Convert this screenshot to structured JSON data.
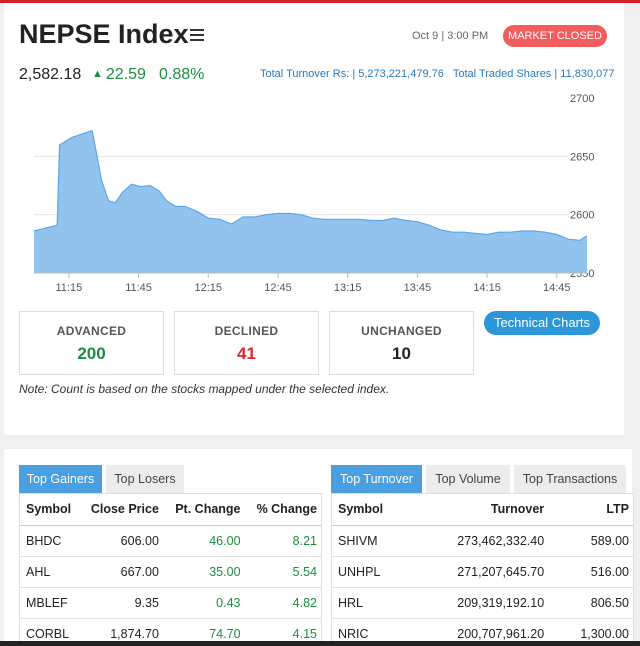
{
  "header": {
    "title": "NEPSE Index",
    "datetime": "Oct 9 | 3:00 PM",
    "status_badge": "MARKET CLOSED"
  },
  "index": {
    "value": "2,582.18",
    "change": "22.59",
    "percent": "0.88%",
    "total_turnover": "Total Turnover Rs: | 5,273,221,479.76",
    "total_traded_shares": "Total Traded Shares | 11,830,077"
  },
  "chart_data": {
    "type": "area",
    "x_ticks": [
      "11:15",
      "11:45",
      "12:15",
      "12:45",
      "13:15",
      "13:45",
      "14:15",
      "14:45"
    ],
    "y_ticks": [
      "2700",
      "2650",
      "2600",
      "2550"
    ],
    "ylim": [
      2550,
      2700
    ],
    "color": "#92c3ef",
    "series": [
      {
        "x": [
          "11:00",
          "11:10",
          "11:11",
          "11:13",
          "11:16",
          "11:25",
          "11:26",
          "11:29",
          "11:32",
          "11:35",
          "11:38",
          "11:42",
          "11:46",
          "11:50",
          "11:54",
          "11:57",
          "12:01",
          "12:05",
          "12:10",
          "12:15",
          "12:20",
          "12:25",
          "12:30",
          "12:35",
          "12:40",
          "12:45",
          "12:50",
          "12:55",
          "13:00",
          "13:05",
          "13:10",
          "13:15",
          "13:20",
          "13:25",
          "13:30",
          "13:35",
          "13:40",
          "13:45",
          "13:50",
          "13:55",
          "14:00",
          "14:05",
          "14:10",
          "14:15",
          "14:20",
          "14:25",
          "14:30",
          "14:35",
          "14:40",
          "14:45",
          "14:50",
          "14:55",
          "14:58"
        ],
        "y": [
          2586,
          2591,
          2660,
          2662,
          2666,
          2672,
          2662,
          2630,
          2612,
          2610,
          2619,
          2626,
          2624,
          2625,
          2620,
          2612,
          2607,
          2607,
          2603,
          2597,
          2596,
          2592,
          2598,
          2598,
          2600,
          2601,
          2601,
          2600,
          2597,
          2596,
          2596,
          2596,
          2596,
          2595,
          2595,
          2597,
          2595,
          2594,
          2591,
          2587,
          2585,
          2585,
          2584,
          2583,
          2585,
          2585,
          2586,
          2586,
          2585,
          2583,
          2579,
          2578,
          2582
        ]
      }
    ]
  },
  "breadth": {
    "advanced_label": "ADVANCED",
    "advanced": "200",
    "declined_label": "DECLINED",
    "declined": "41",
    "unchanged_label": "UNCHANGED",
    "unchanged": "10"
  },
  "tech_charts_label": "Technical Charts",
  "note": "Note: Count is based on the stocks mapped under the selected index.",
  "gainers": {
    "tabs": [
      "Top Gainers",
      "Top Losers"
    ],
    "headers": [
      "Symbol",
      "Close Price",
      "Pt. Change",
      "% Change"
    ],
    "rows": [
      [
        "BHDC",
        "606.00",
        "46.00",
        "8.21"
      ],
      [
        "AHL",
        "667.00",
        "35.00",
        "5.54"
      ],
      [
        "MBLEF",
        "9.35",
        "0.43",
        "4.82"
      ],
      [
        "CORBL",
        "1,874.70",
        "74.70",
        "4.15"
      ]
    ]
  },
  "turnover": {
    "tabs": [
      "Top Turnover",
      "Top Volume",
      "Top Transactions"
    ],
    "headers": [
      "Symbol",
      "Turnover",
      "LTP"
    ],
    "rows": [
      [
        "SHIVM",
        "273,462,332.40",
        "589.00"
      ],
      [
        "UNHPL",
        "271,207,645.70",
        "516.00"
      ],
      [
        "HRL",
        "209,319,192.10",
        "806.50"
      ],
      [
        "NRIC",
        "200,707,961.20",
        "1,300.00"
      ]
    ]
  },
  "colors": {
    "gain": "#1a8e3e",
    "loss": "#e0262c",
    "accent": "#4a9fe0",
    "closed": "#f25c5c"
  }
}
